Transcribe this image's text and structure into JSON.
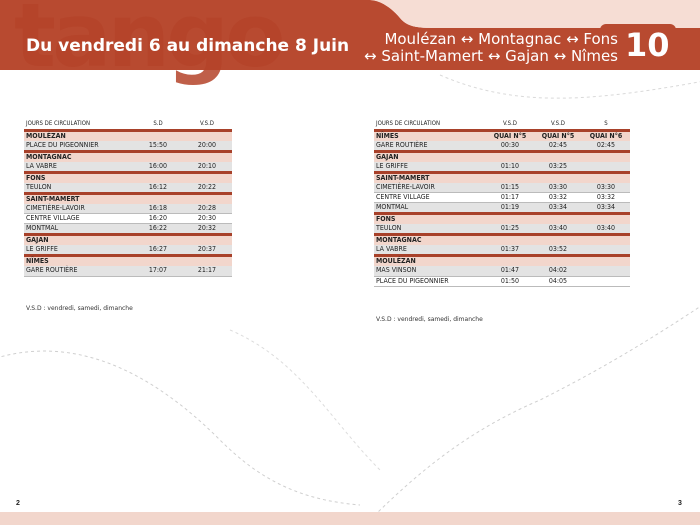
{
  "header": {
    "brand": "tango",
    "title": "Du vendredi 6 au dimanche 8 Juin",
    "route_line1": "Moulézan ↔ Montagnac ↔ Fons",
    "route_line2": "↔ Saint-Mamert ↔ Gajan ↔ Nîmes",
    "line_number": "10"
  },
  "colors": {
    "brand": "#a8412a",
    "town_row": "#f2d6cc",
    "shade_row": "#e3e3e3"
  },
  "left_table": {
    "headers": [
      "JOURS DE CIRCULATION",
      "S.D",
      "V.S.D"
    ],
    "rows": [
      {
        "type": "town",
        "name": "MOULÉZAN"
      },
      {
        "type": "stop",
        "name": "PLACE DU PIGEONNIER",
        "times": [
          "15:50",
          "20:00"
        ]
      },
      {
        "type": "town",
        "name": "MONTAGNAC"
      },
      {
        "type": "stop",
        "name": "LA VABRE",
        "times": [
          "16:00",
          "20:10"
        ]
      },
      {
        "type": "town",
        "name": "FONS"
      },
      {
        "type": "stop",
        "name": "TEULON",
        "times": [
          "16:12",
          "20:22"
        ]
      },
      {
        "type": "town",
        "name": "SAINT-MAMERT"
      },
      {
        "type": "stop",
        "name": "CIMETIÈRE-LAVOIR",
        "times": [
          "16:18",
          "20:28"
        ]
      },
      {
        "type": "stop",
        "name": "CENTRE VILLAGE",
        "times": [
          "16:20",
          "20:30"
        ]
      },
      {
        "type": "stop",
        "name": "MONTMAL",
        "times": [
          "16:22",
          "20:32"
        ]
      },
      {
        "type": "town",
        "name": "GAJAN"
      },
      {
        "type": "stop",
        "name": "LE GRIFFE",
        "times": [
          "16:27",
          "20:37"
        ]
      },
      {
        "type": "town",
        "name": "NÎMES"
      },
      {
        "type": "stop",
        "name": "GARE ROUTIÈRE",
        "times": [
          "17:07",
          "21:17"
        ]
      }
    ],
    "note": "V.S.D : vendredi, samedi, dimanche"
  },
  "right_table": {
    "headers": [
      "JOURS DE CIRCULATION",
      "V.S.D",
      "V.S.D",
      "S"
    ],
    "rows": [
      {
        "type": "town",
        "name": "NÎMES",
        "times": [
          "QUAI N°5",
          "QUAI N°5",
          "QUAI N°6"
        ]
      },
      {
        "type": "stop",
        "name": "GARE ROUTIÈRE",
        "times": [
          "00:30",
          "02:45",
          "02:45"
        ]
      },
      {
        "type": "town",
        "name": "GAJAN"
      },
      {
        "type": "stop",
        "name": "LE GRIFFE",
        "times": [
          "01:10",
          "03:25",
          ""
        ]
      },
      {
        "type": "town",
        "name": "SAINT-MAMERT"
      },
      {
        "type": "stop",
        "name": "CIMETIÈRE-LAVOIR",
        "times": [
          "01:15",
          "03:30",
          "03:30"
        ]
      },
      {
        "type": "stop",
        "name": "CENTRE VILLAGE",
        "times": [
          "01:17",
          "03:32",
          "03:32"
        ]
      },
      {
        "type": "stop",
        "name": "MONTMAL",
        "times": [
          "01:19",
          "03:34",
          "03:34"
        ]
      },
      {
        "type": "town",
        "name": "FONS"
      },
      {
        "type": "stop",
        "name": "TEULON",
        "times": [
          "01:25",
          "03:40",
          "03:40"
        ]
      },
      {
        "type": "town",
        "name": "MONTAGNAC"
      },
      {
        "type": "stop",
        "name": "LA VABRE",
        "times": [
          "01:37",
          "03:52",
          ""
        ]
      },
      {
        "type": "town",
        "name": "MOULÉZAN"
      },
      {
        "type": "stop",
        "name": "MAS VINSON",
        "times": [
          "01:47",
          "04:02",
          ""
        ]
      },
      {
        "type": "stop",
        "name": "PLACE DU PIGEONNIER",
        "times": [
          "01:50",
          "04:05",
          ""
        ]
      }
    ],
    "note": "V.S.D : vendredi, samedi, dimanche"
  },
  "footer": {
    "page_left": "2",
    "page_right": "3"
  }
}
